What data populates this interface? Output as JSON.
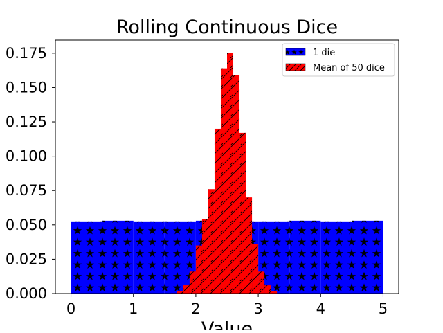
{
  "chart_data": {
    "type": "bar",
    "title": "Rolling Continuous Dice",
    "xlabel": "Value",
    "ylabel": "",
    "xlim": [
      -0.25,
      5.25
    ],
    "ylim": [
      0,
      0.1845
    ],
    "x_ticks": [
      0,
      1,
      2,
      3,
      4,
      5
    ],
    "x_tick_labels": [
      "0",
      "1",
      "2",
      "3",
      "4",
      "5"
    ],
    "y_ticks": [
      0,
      0.025,
      0.05,
      0.075,
      0.1,
      0.125,
      0.15,
      0.175
    ],
    "y_tick_labels": [
      "0.000",
      "0.025",
      "0.050",
      "0.075",
      "0.100",
      "0.125",
      "0.150",
      "0.175"
    ],
    "grid": false,
    "legend_position": "top-right",
    "series": [
      {
        "name": "1 die",
        "color": "#0000ff",
        "hatch": "stars",
        "bin_edges": [
          0,
          0.5,
          1,
          1.5,
          2,
          2.5,
          3,
          3.5,
          4,
          4.5,
          5
        ],
        "values": [
          0.0525,
          0.053,
          0.0525,
          0.0525,
          0.053,
          0.0525,
          0.0525,
          0.053,
          0.0525,
          0.053
        ]
      },
      {
        "name": "Mean of 50 dice",
        "color": "#ff0000",
        "hatch": "diagonal",
        "bin_edges": [
          1.6,
          1.7,
          1.8,
          1.9,
          2.0,
          2.1,
          2.2,
          2.3,
          2.4,
          2.5,
          2.6,
          2.7,
          2.8,
          2.9,
          3.0,
          3.1,
          3.2,
          3.3
        ],
        "values": [
          0.0003,
          0.0015,
          0.006,
          0.016,
          0.035,
          0.054,
          0.076,
          0.12,
          0.164,
          0.175,
          0.159,
          0.117,
          0.07,
          0.036,
          0.016,
          0.006,
          0.0015
        ]
      }
    ]
  }
}
